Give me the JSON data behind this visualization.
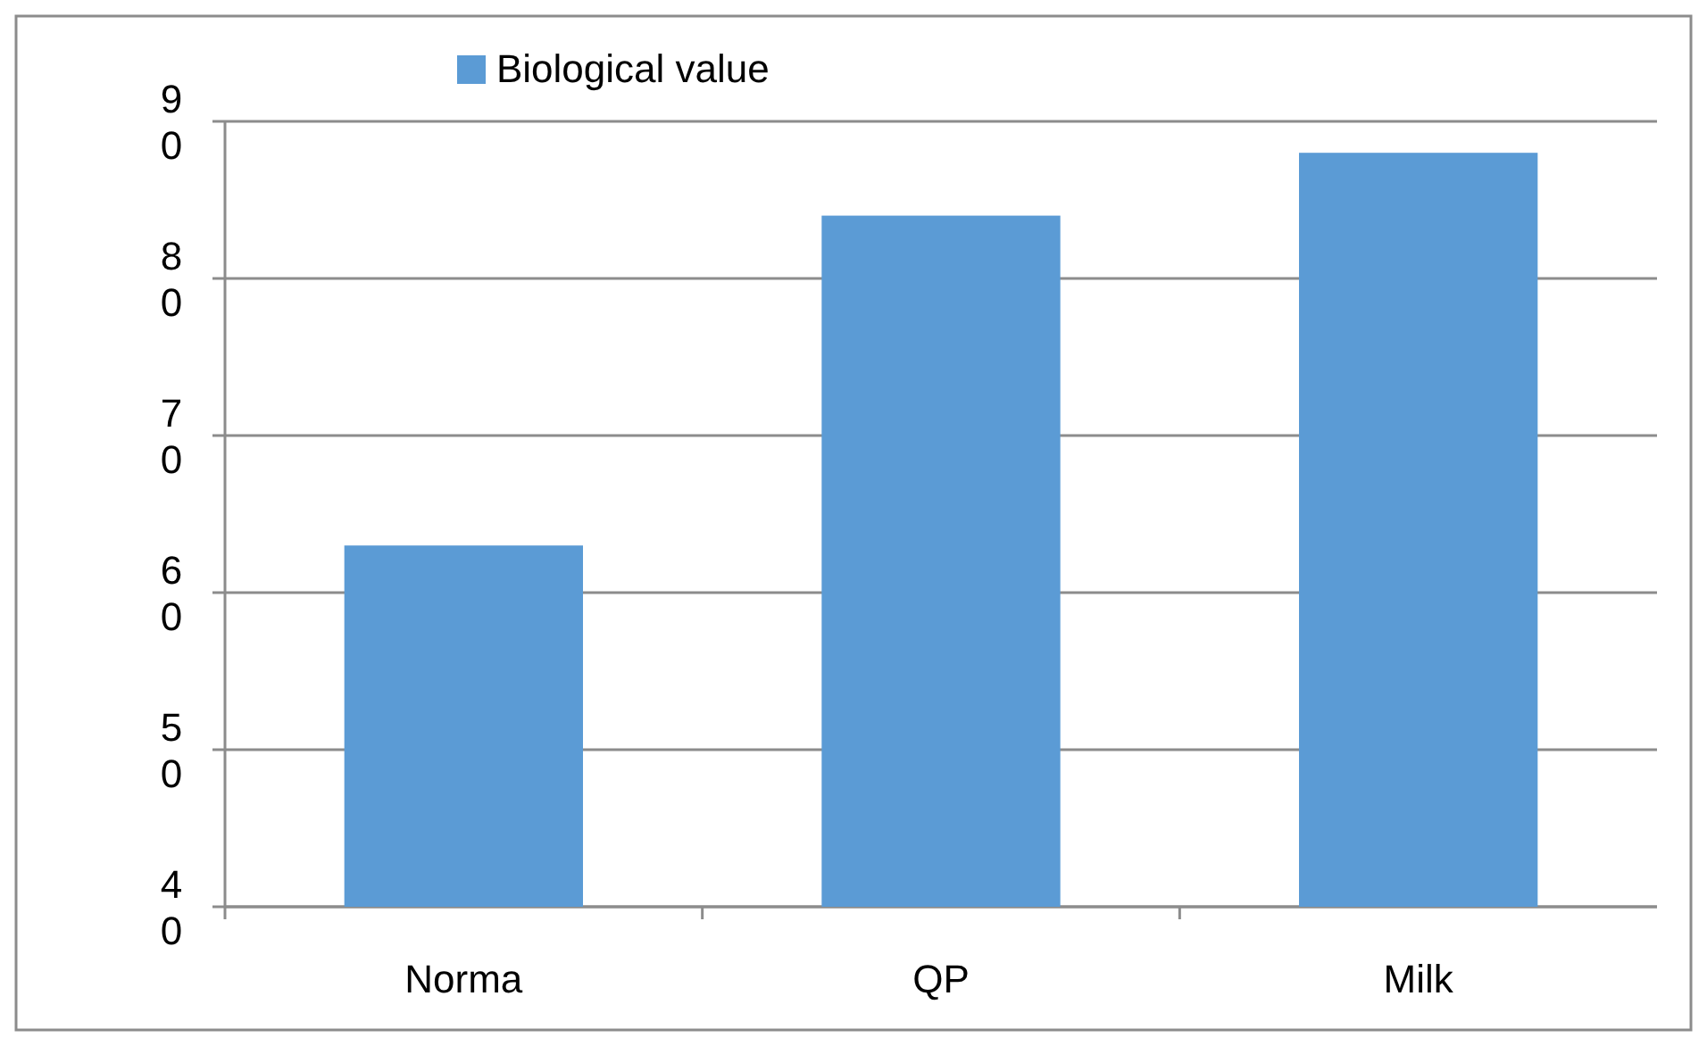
{
  "chart_data": {
    "type": "bar",
    "categories": [
      "Norma",
      "QP",
      "Milk"
    ],
    "series": [
      {
        "name": "Biological value",
        "color": "#5b9bd5",
        "values": [
          63,
          84,
          88
        ]
      }
    ],
    "ylim": [
      40,
      90
    ],
    "yticks": [
      40,
      50,
      60,
      70,
      80,
      90
    ],
    "grid": "y",
    "legend": "top left"
  }
}
